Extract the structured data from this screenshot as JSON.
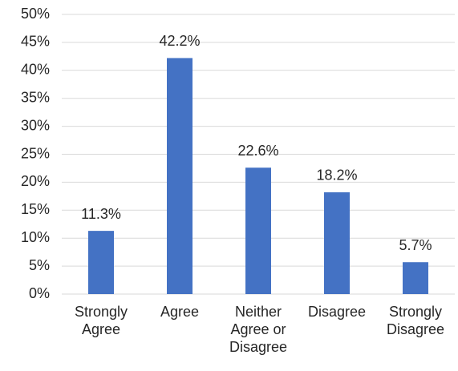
{
  "chart_data": {
    "type": "bar",
    "categories": [
      "Strongly Agree",
      "Agree",
      "Neither Agree or Disagree",
      "Disagree",
      "Strongly Disagree"
    ],
    "values": [
      11.3,
      42.2,
      22.6,
      18.2,
      5.7
    ],
    "value_labels": [
      "11.3%",
      "42.2%",
      "22.6%",
      "18.2%",
      "5.7%"
    ],
    "color": "#4472c4",
    "ylim": [
      0,
      50
    ],
    "yticks": [
      {
        "value": 0,
        "label": "0%"
      },
      {
        "value": 5,
        "label": "5%"
      },
      {
        "value": 10,
        "label": "10%"
      },
      {
        "value": 15,
        "label": "15%"
      },
      {
        "value": 20,
        "label": "20%"
      },
      {
        "value": 25,
        "label": "25%"
      },
      {
        "value": 30,
        "label": "30%"
      },
      {
        "value": 35,
        "label": "35%"
      },
      {
        "value": 40,
        "label": "40%"
      },
      {
        "value": 45,
        "label": "45%"
      },
      {
        "value": 50,
        "label": "50%"
      }
    ],
    "grid": true
  }
}
